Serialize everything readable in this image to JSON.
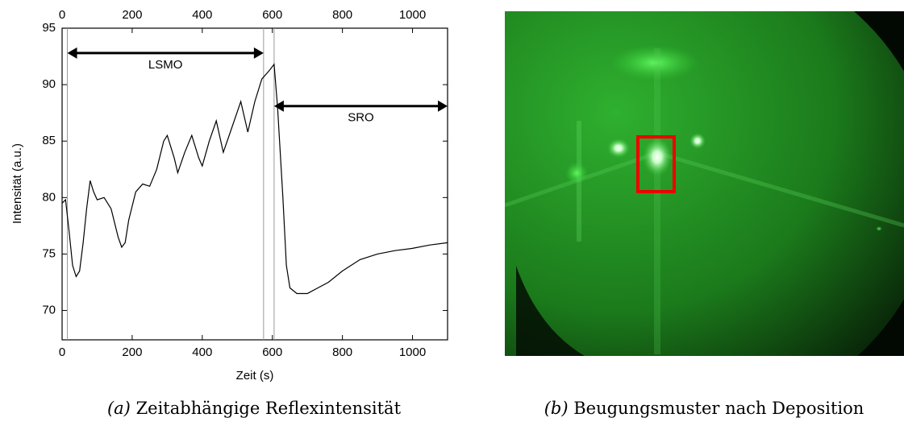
{
  "chart_data": {
    "type": "line",
    "xlabel": "Zeit (s)",
    "ylabel": "Intensität (a.u.)",
    "x": [
      0,
      10,
      20,
      30,
      40,
      50,
      60,
      70,
      80,
      90,
      100,
      120,
      140,
      160,
      170,
      180,
      190,
      210,
      230,
      250,
      270,
      290,
      300,
      320,
      330,
      350,
      370,
      390,
      400,
      420,
      440,
      460,
      480,
      510,
      530,
      550,
      570,
      590,
      605,
      615,
      630,
      640,
      650,
      670,
      700,
      730,
      760,
      800,
      850,
      900,
      950,
      1000,
      1050,
      1100
    ],
    "values": [
      79.5,
      79.8,
      77,
      74,
      73,
      73.5,
      76,
      79,
      81.5,
      80.5,
      79.8,
      80,
      79,
      76.5,
      75.6,
      76,
      78,
      80.5,
      81.2,
      81,
      82.5,
      85,
      85.5,
      83.5,
      82.2,
      84,
      85.5,
      83.5,
      82.8,
      85,
      86.8,
      84,
      85.8,
      88.5,
      85.8,
      88.5,
      90.5,
      91.2,
      91.8,
      88,
      80,
      74,
      72,
      71.5,
      71.5,
      72,
      72.5,
      73.5,
      74.5,
      75,
      75.3,
      75.5,
      75.8,
      76
    ],
    "color": "#000000",
    "xlim": [
      0,
      1100
    ],
    "xticks": [
      0,
      200,
      400,
      600,
      800,
      1000
    ],
    "ylim": [
      67.4,
      95
    ],
    "yticks": [
      70,
      75,
      80,
      85,
      90,
      95
    ],
    "markers": [
      15,
      575,
      605
    ],
    "annotations": [
      {
        "text": "LSMO",
        "x": [
          15,
          575
        ],
        "y": 92.8
      },
      {
        "text": "SRO",
        "x": [
          605,
          1100
        ],
        "y": 88.1
      }
    ]
  },
  "captions": [
    {
      "label": "(a)",
      "text": "Zeitabhängige Reflexintensität"
    },
    {
      "label": "(b)",
      "text": "Beugungsmuster nach Deposition"
    }
  ]
}
